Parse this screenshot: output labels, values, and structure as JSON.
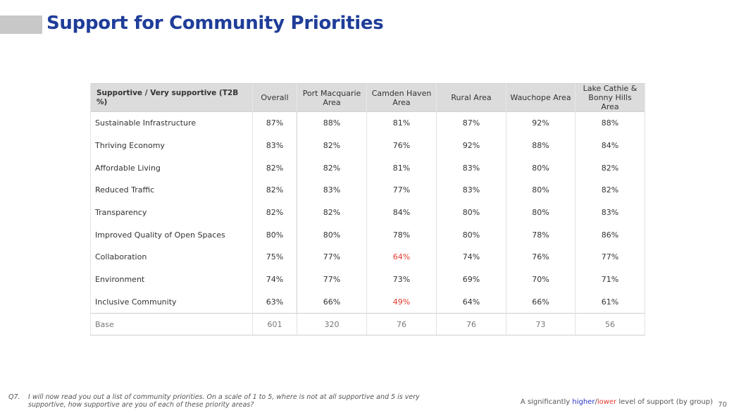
{
  "title": "Support for Community Priorities",
  "table": {
    "headers": [
      "Supportive / Very supportive (T2B %)",
      "Overall",
      "Port Macquarie Area",
      "Camden Haven Area",
      "Rural Area",
      "Wauchope Area",
      "Lake Cathie & Bonny Hills Area"
    ],
    "rows": [
      {
        "label": "Sustainable Infrastructure",
        "values": [
          "87%",
          "88%",
          "81%",
          "87%",
          "92%",
          "88%"
        ],
        "flags": [
          "",
          "",
          "",
          "",
          "",
          ""
        ]
      },
      {
        "label": "Thriving Economy",
        "values": [
          "83%",
          "82%",
          "76%",
          "92%",
          "88%",
          "84%"
        ],
        "flags": [
          "",
          "",
          "",
          "",
          "",
          ""
        ]
      },
      {
        "label": "Affordable Living",
        "values": [
          "82%",
          "82%",
          "81%",
          "83%",
          "80%",
          "82%"
        ],
        "flags": [
          "",
          "",
          "",
          "",
          "",
          ""
        ]
      },
      {
        "label": "Reduced Traffic",
        "values": [
          "82%",
          "83%",
          "77%",
          "83%",
          "80%",
          "82%"
        ],
        "flags": [
          "",
          "",
          "",
          "",
          "",
          ""
        ]
      },
      {
        "label": "Transparency",
        "values": [
          "82%",
          "82%",
          "84%",
          "80%",
          "80%",
          "83%"
        ],
        "flags": [
          "",
          "",
          "",
          "",
          "",
          ""
        ]
      },
      {
        "label": "Improved Quality of Open Spaces",
        "values": [
          "80%",
          "80%",
          "78%",
          "80%",
          "78%",
          "86%"
        ],
        "flags": [
          "",
          "",
          "",
          "",
          "",
          ""
        ]
      },
      {
        "label": "Collaboration",
        "values": [
          "75%",
          "77%",
          "64%",
          "74%",
          "76%",
          "77%"
        ],
        "flags": [
          "",
          "",
          "low",
          "",
          "",
          ""
        ]
      },
      {
        "label": "Environment",
        "values": [
          "74%",
          "77%",
          "73%",
          "69%",
          "70%",
          "71%"
        ],
        "flags": [
          "",
          "",
          "",
          "",
          "",
          ""
        ]
      },
      {
        "label": "Inclusive Community",
        "values": [
          "63%",
          "66%",
          "49%",
          "64%",
          "66%",
          "61%"
        ],
        "flags": [
          "",
          "",
          "low",
          "",
          "",
          ""
        ]
      }
    ],
    "base": {
      "label": "Base",
      "values": [
        "601",
        "320",
        "76",
        "76",
        "73",
        "56"
      ]
    }
  },
  "footnote": {
    "qnum": "Q7.",
    "text": "I will now read you out a list of community priorities. On a scale of 1 to 5, where is not at all supportive and 5 is very supportive, how supportive are you of each of these priority areas?"
  },
  "legend": {
    "prefix": "A significantly ",
    "higher": "higher",
    "sep": "/",
    "lower": "lower",
    "suffix": " level of support (by group)",
    "higher_color": "#2433cc",
    "lower_color": "#e23b2e"
  },
  "page_number": "70"
}
